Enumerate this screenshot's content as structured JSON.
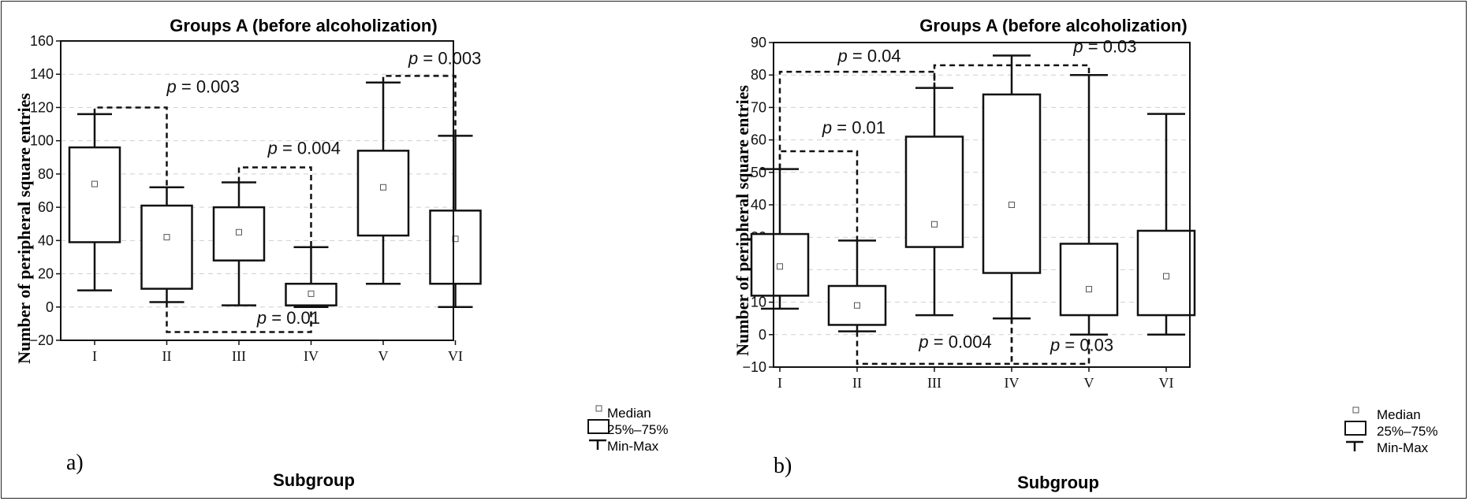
{
  "chart_data": [
    {
      "type": "box",
      "panel_label": "a)",
      "title": "Groups A (before alcoholization)",
      "xlabel": "Subgroup",
      "ylabel": "Number of peripheral square entries",
      "ylim": [
        -20,
        160
      ],
      "yticks": [
        -20,
        0,
        20,
        40,
        60,
        80,
        100,
        120,
        140,
        160
      ],
      "categories": [
        "I",
        "II",
        "III",
        "IV",
        "V",
        "VI"
      ],
      "boxes": [
        {
          "min": 10,
          "q1": 39,
          "median": 74,
          "q3": 96,
          "max": 116
        },
        {
          "min": 3,
          "q1": 11,
          "median": 42,
          "q3": 61,
          "max": 72
        },
        {
          "min": 1,
          "q1": 28,
          "median": 45,
          "q3": 60,
          "max": 75
        },
        {
          "min": 0,
          "q1": 1,
          "median": 8,
          "q3": 14,
          "max": 36
        },
        {
          "min": 14,
          "q1": 43,
          "median": 72,
          "q3": 94,
          "max": 135
        },
        {
          "min": 0,
          "q1": 14,
          "median": 41,
          "q3": 58,
          "max": 103
        }
      ],
      "comparisons": [
        {
          "from": "I",
          "to": "II",
          "y": 120,
          "label_text": "= 0.003",
          "label_x": 1.0,
          "label_y": 129,
          "from_top": 116,
          "to_top": 72
        },
        {
          "from": "III",
          "to": "IV",
          "y": 84,
          "label_text": "= 0.004",
          "label_x": 2.4,
          "label_y": 92,
          "from_top": 75,
          "to_top": 36
        },
        {
          "from": "II",
          "to": "IV",
          "y": -15,
          "label_text": "= 0.01",
          "label_x": 2.25,
          "label_y": -10,
          "from_bottom": 3,
          "to_bottom": 0
        },
        {
          "from": "V",
          "to": "VI",
          "y": 139,
          "label_text": "= 0.003",
          "label_x": 4.35,
          "label_y": 146,
          "from_top": 135,
          "to_top": 103
        }
      ],
      "legend": {
        "median": "Median",
        "box": "25%–75%",
        "whisker": "Min-Max"
      }
    },
    {
      "type": "box",
      "panel_label": "b)",
      "title": "Groups A (before alcoholization)",
      "xlabel": "Subgroup",
      "ylabel": "Number of peripheral square entries",
      "ylim": [
        -10,
        90
      ],
      "yticks": [
        -10,
        0,
        10,
        20,
        30,
        40,
        50,
        60,
        70,
        80,
        90
      ],
      "categories": [
        "I",
        "II",
        "III",
        "IV",
        "V",
        "VI"
      ],
      "boxes": [
        {
          "min": 8,
          "q1": 12,
          "median": 21,
          "q3": 31,
          "max": 51
        },
        {
          "min": 1,
          "q1": 3,
          "median": 9,
          "q3": 15,
          "max": 29
        },
        {
          "min": 6,
          "q1": 27,
          "median": 34,
          "q3": 61,
          "max": 76
        },
        {
          "min": 5,
          "q1": 19,
          "median": 40,
          "q3": 74,
          "max": 86
        },
        {
          "min": 0,
          "q1": 6,
          "median": 14,
          "q3": 28,
          "max": 80
        },
        {
          "min": 0,
          "q1": 6,
          "median": 18,
          "q3": 32,
          "max": 68
        }
      ],
      "comparisons": [
        {
          "from": "I",
          "to": "III",
          "y": 81,
          "label_text": "= 0.04",
          "label_x": 0.75,
          "label_y": 84,
          "from_top": 51,
          "to_top": 76
        },
        {
          "from": "I",
          "to": "II",
          "y": 56.5,
          "label_text": "= 0.01",
          "label_x": 0.55,
          "label_y": 62,
          "from_top": 51,
          "to_top": 29
        },
        {
          "from": "III",
          "to": "V",
          "y": 83,
          "label_text": "= 0.03",
          "label_x": 3.8,
          "label_y": 87,
          "from_top": 76,
          "to_top": 80
        },
        {
          "from": "II",
          "to": "IV",
          "y": -9,
          "label_text": "= 0.004",
          "label_x": 1.8,
          "label_y": -4,
          "from_bottom": 1,
          "to_bottom": 5
        },
        {
          "from": "IV",
          "to": "V",
          "y": -9,
          "label_text": "= 0.03",
          "label_x": 3.5,
          "label_y": -5,
          "from_bottom": 5,
          "to_bottom": 0
        }
      ],
      "legend": {
        "median": "Median",
        "box": "25%–75%",
        "whisker": "Min-Max"
      }
    }
  ],
  "ui": {
    "p_symbol": "p",
    "colors": {
      "ink": "#111111",
      "grid": "#cfcfcf",
      "median_marker": "#555555"
    }
  }
}
